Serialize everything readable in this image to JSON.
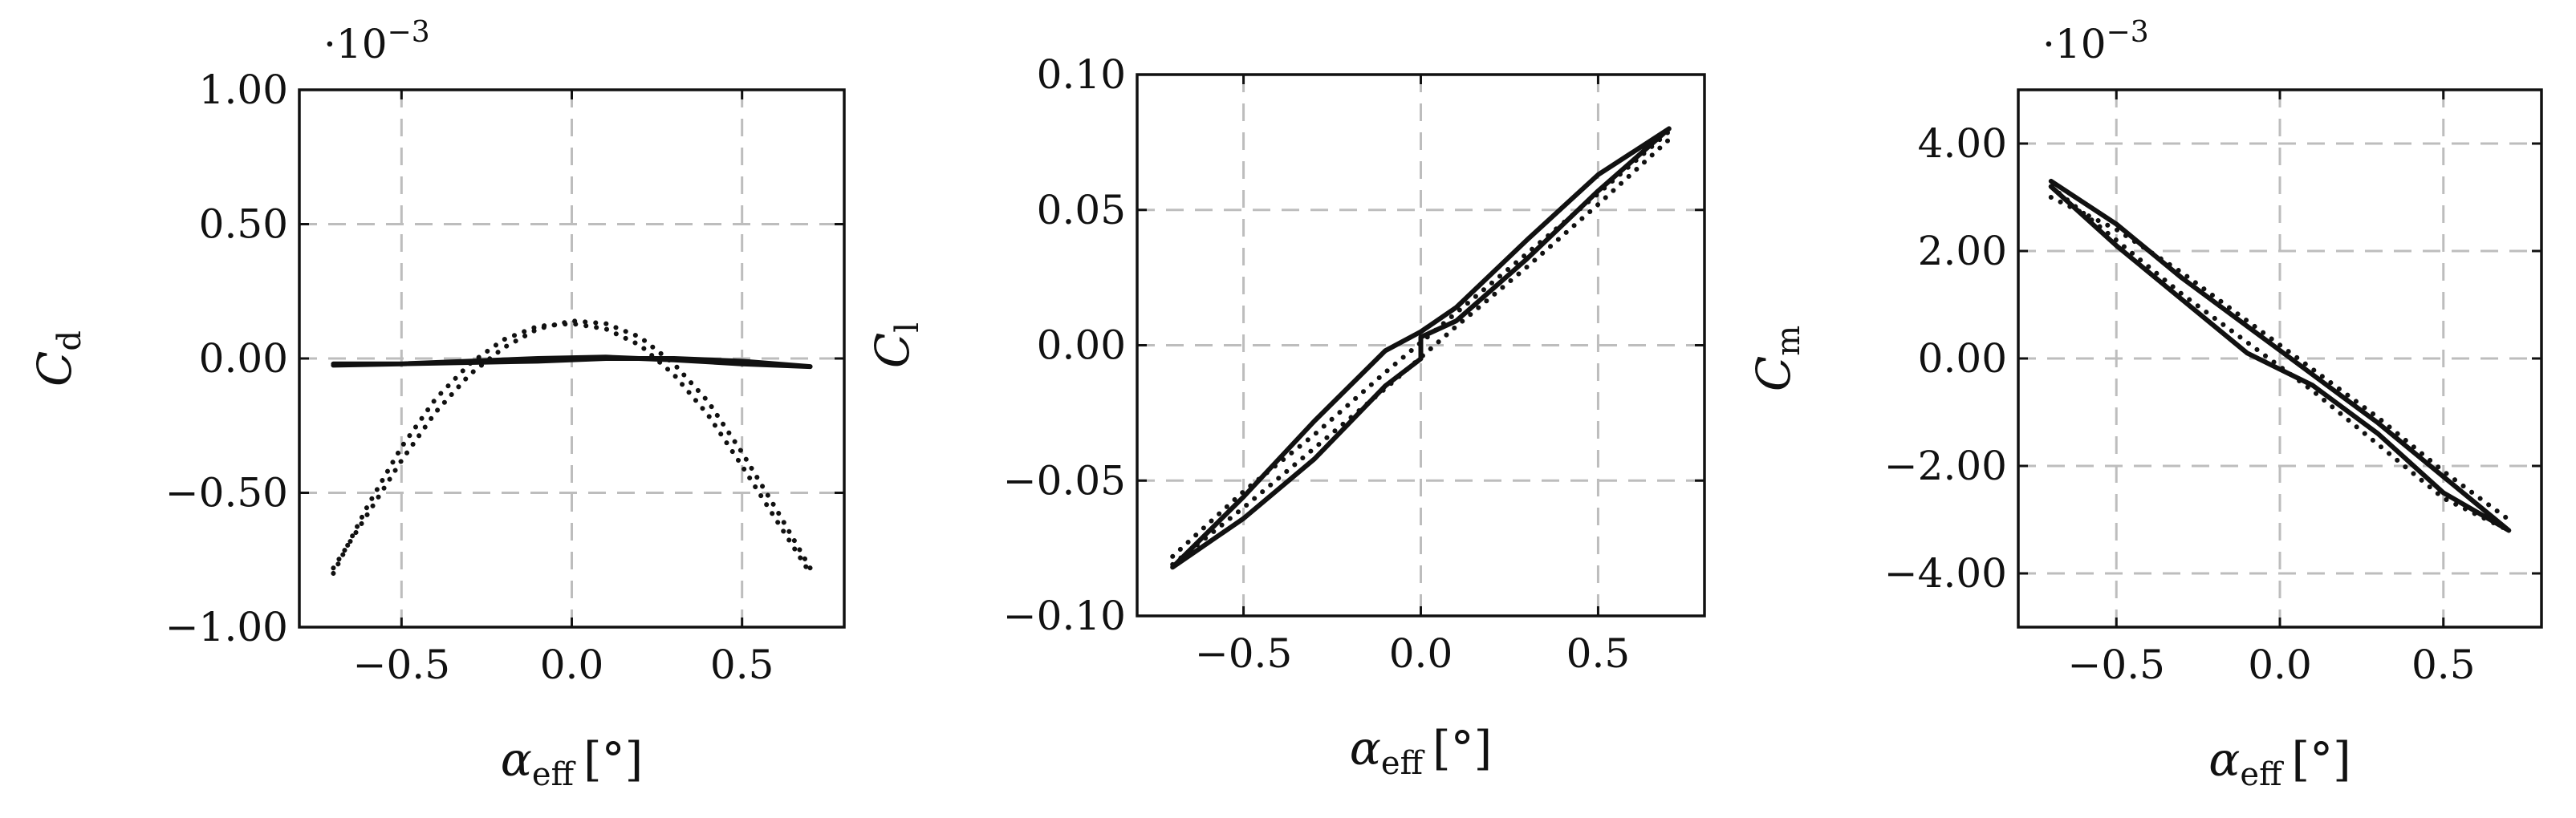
{
  "chart_data": [
    {
      "type": "line",
      "ylabel_symbol": "C",
      "ylabel_sub": "d",
      "xlabel_symbol": "α",
      "xlabel_sub": "eff",
      "xlabel_unit": "[°]",
      "multiplier_base": "·10",
      "multiplier_exp": "−3",
      "xlim": [
        -0.8,
        0.8
      ],
      "ylim": [
        -1.0,
        1.0
      ],
      "xticks": [
        -0.5,
        0.0,
        0.5
      ],
      "xtick_labels": [
        "−0.5",
        "0.0",
        "0.5"
      ],
      "yticks": [
        -1.0,
        -0.5,
        0.0,
        0.5,
        1.0
      ],
      "ytick_labels": [
        "−1.00",
        "−0.50",
        "0.00",
        "0.50",
        "1.00"
      ],
      "grid": true,
      "series": [
        {
          "style": "solid",
          "x": [
            -0.7,
            -0.5,
            -0.3,
            -0.1,
            0.1,
            0.3,
            0.5,
            0.7,
            0.5,
            0.3,
            0.1,
            -0.1,
            -0.3,
            -0.5,
            -0.7
          ],
          "y": [
            -0.02,
            -0.02,
            -0.015,
            -0.01,
            0.0,
            0.0,
            -0.01,
            -0.03,
            -0.02,
            -0.005,
            0.005,
            0.0,
            -0.01,
            -0.02,
            -0.025
          ]
        },
        {
          "style": "dotted",
          "x": [
            -0.7,
            -0.6,
            -0.5,
            -0.4,
            -0.3,
            -0.2,
            -0.1,
            0.0,
            0.1,
            0.2,
            0.3,
            0.4,
            0.5,
            0.6,
            0.7
          ],
          "y": [
            -0.8,
            -0.55,
            -0.33,
            -0.15,
            -0.02,
            0.07,
            0.12,
            0.13,
            0.11,
            0.05,
            -0.06,
            -0.21,
            -0.4,
            -0.6,
            -0.8
          ]
        },
        {
          "style": "dotted",
          "x": [
            -0.7,
            -0.6,
            -0.5,
            -0.4,
            -0.3,
            -0.2,
            -0.1,
            0.0,
            0.1,
            0.2,
            0.3,
            0.4,
            0.5,
            0.6,
            0.7
          ],
          "y": [
            -0.78,
            -0.58,
            -0.38,
            -0.2,
            -0.06,
            0.04,
            0.11,
            0.14,
            0.13,
            0.08,
            -0.02,
            -0.16,
            -0.35,
            -0.56,
            -0.78
          ]
        }
      ]
    },
    {
      "type": "line",
      "ylabel_symbol": "C",
      "ylabel_sub": "l",
      "xlabel_symbol": "α",
      "xlabel_sub": "eff",
      "xlabel_unit": "[°]",
      "multiplier_base": "",
      "multiplier_exp": "",
      "xlim": [
        -0.8,
        0.8
      ],
      "ylim": [
        -0.1,
        0.1
      ],
      "xticks": [
        -0.5,
        0.0,
        0.5
      ],
      "xtick_labels": [
        "−0.5",
        "0.0",
        "0.5"
      ],
      "yticks": [
        -0.1,
        -0.05,
        0.0,
        0.05,
        0.1
      ],
      "ytick_labels": [
        "−0.10",
        "−0.05",
        "0.00",
        "0.05",
        "0.10"
      ],
      "grid": true,
      "series": [
        {
          "style": "solid",
          "x": [
            -0.7,
            -0.5,
            -0.3,
            -0.1,
            0.0,
            0.0,
            0.1,
            0.3,
            0.5,
            0.7,
            0.5,
            0.3,
            0.1,
            0.0,
            -0.1,
            -0.3,
            -0.5,
            -0.7
          ],
          "y": [
            -0.082,
            -0.064,
            -0.042,
            -0.015,
            -0.005,
            0.003,
            0.009,
            0.032,
            0.057,
            0.08,
            0.063,
            0.039,
            0.014,
            0.005,
            -0.002,
            -0.028,
            -0.056,
            -0.082
          ]
        },
        {
          "style": "dotted",
          "x": [
            -0.7,
            -0.5,
            -0.3,
            -0.1,
            0.1,
            0.3,
            0.5,
            0.7
          ],
          "y": [
            -0.078,
            -0.054,
            -0.033,
            -0.01,
            0.012,
            0.034,
            0.056,
            0.079
          ]
        },
        {
          "style": "dotted",
          "x": [
            -0.7,
            -0.5,
            -0.3,
            -0.1,
            0.1,
            0.3,
            0.5,
            0.7
          ],
          "y": [
            -0.081,
            -0.06,
            -0.038,
            -0.016,
            0.007,
            0.029,
            0.052,
            0.076
          ]
        }
      ]
    },
    {
      "type": "line",
      "ylabel_symbol": "C",
      "ylabel_sub": "m",
      "xlabel_symbol": "α",
      "xlabel_sub": "eff",
      "xlabel_unit": "[°]",
      "multiplier_base": "·10",
      "multiplier_exp": "−3",
      "xlim": [
        -0.8,
        0.8
      ],
      "ylim": [
        -5.0,
        5.0
      ],
      "xticks": [
        -0.5,
        0.0,
        0.5
      ],
      "xtick_labels": [
        "−0.5",
        "0.0",
        "0.5"
      ],
      "yticks": [
        -4.0,
        -2.0,
        0.0,
        2.0,
        4.0
      ],
      "ytick_labels": [
        "−4.00",
        "−2.00",
        "0.00",
        "2.00",
        "4.00"
      ],
      "grid": true,
      "series": [
        {
          "style": "solid",
          "x": [
            -0.7,
            -0.5,
            -0.3,
            -0.1,
            0.0,
            0.1,
            0.3,
            0.5,
            0.7,
            0.5,
            0.3,
            0.1,
            0.0,
            -0.1,
            -0.3,
            -0.5,
            -0.7
          ],
          "y": [
            3.3,
            2.5,
            1.5,
            0.6,
            0.15,
            -0.3,
            -1.2,
            -2.2,
            -3.2,
            -2.5,
            -1.4,
            -0.5,
            -0.2,
            0.1,
            1.1,
            2.1,
            3.2
          ]
        },
        {
          "style": "dotted",
          "x": [
            -0.7,
            -0.5,
            -0.3,
            -0.1,
            0.1,
            0.3,
            0.5,
            0.7
          ],
          "y": [
            3.2,
            2.2,
            1.2,
            0.3,
            -0.6,
            -1.6,
            -2.6,
            -3.2
          ]
        },
        {
          "style": "dotted",
          "x": [
            -0.7,
            -0.5,
            -0.3,
            -0.1,
            0.1,
            0.3,
            0.5,
            0.7
          ],
          "y": [
            3.0,
            2.4,
            1.6,
            0.7,
            -0.2,
            -1.1,
            -2.1,
            -3.0
          ]
        }
      ]
    }
  ]
}
